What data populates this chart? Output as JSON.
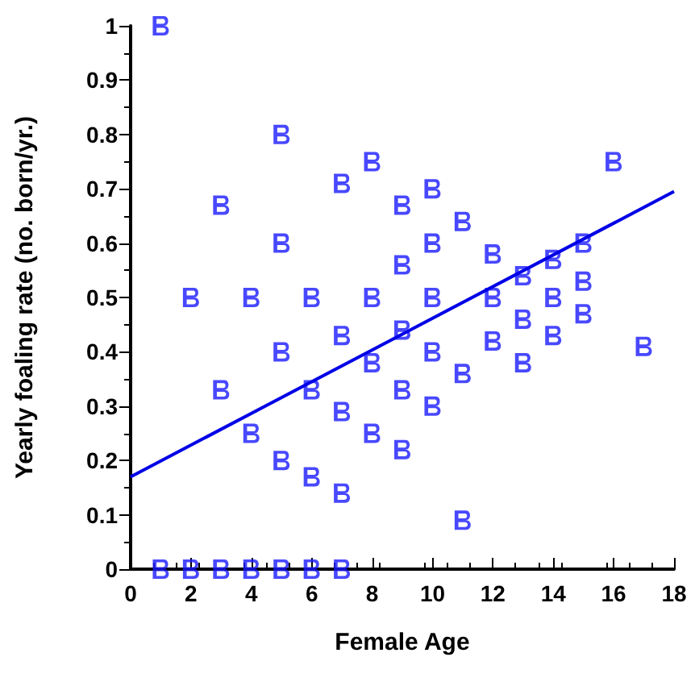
{
  "chart_data": {
    "type": "scatter",
    "xlabel": "Female Age",
    "ylabel": "Yearly foaling rate (no. born/yr.)",
    "xlim": [
      0,
      18
    ],
    "xticks": [
      0,
      2,
      4,
      6,
      8,
      10,
      12,
      14,
      16,
      18
    ],
    "ylim": [
      0,
      1
    ],
    "yticks": [
      0,
      0.1,
      0.2,
      0.3,
      0.4,
      0.5,
      0.6,
      0.7,
      0.8,
      0.9,
      1
    ],
    "grid": false,
    "series": [
      {
        "color": "#1a1aff",
        "x": [
          1,
          1,
          2,
          3,
          4,
          5,
          6,
          7,
          2,
          3,
          3,
          4,
          4,
          5,
          5,
          5,
          5,
          6,
          6,
          6,
          7,
          7,
          7,
          7,
          8,
          8,
          8,
          8,
          9,
          9,
          9,
          9,
          9,
          10,
          10,
          10,
          10,
          10,
          11,
          11,
          11,
          12,
          12,
          12,
          13,
          13,
          13,
          14,
          14,
          14,
          15,
          15,
          15,
          16,
          17
        ],
        "values": [
          1.0,
          0,
          0,
          0,
          0,
          0,
          0,
          0,
          0.5,
          0.67,
          0.33,
          0.5,
          0.25,
          0.8,
          0.6,
          0.4,
          0.2,
          0.5,
          0.33,
          0.17,
          0.71,
          0.43,
          0.29,
          0.14,
          0.75,
          0.5,
          0.38,
          0.25,
          0.67,
          0.56,
          0.44,
          0.33,
          0.22,
          0.7,
          0.6,
          0.5,
          0.4,
          0.3,
          0.64,
          0.36,
          0.09,
          0.58,
          0.5,
          0.42,
          0.54,
          0.46,
          0.38,
          0.57,
          0.5,
          0.43,
          0.6,
          0.53,
          0.47,
          0.75,
          0.41
        ]
      },
      {
        "type": "line",
        "color": "#0000e6",
        "x": [
          0,
          18
        ],
        "values": [
          0.17,
          0.695
        ]
      }
    ]
  }
}
